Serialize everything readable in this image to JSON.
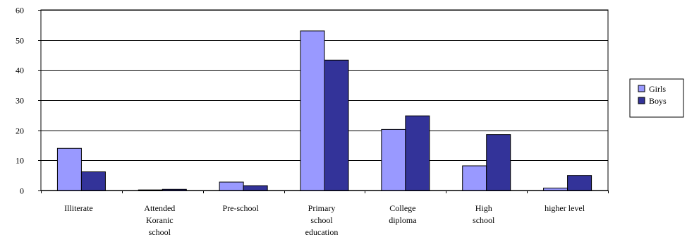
{
  "chart_data": {
    "type": "bar",
    "title": "",
    "xlabel": "",
    "ylabel": "",
    "ylim": [
      0,
      60
    ],
    "yticks": [
      0,
      10,
      20,
      30,
      40,
      50,
      60
    ],
    "grid": true,
    "legend_position": "right",
    "categories": [
      [
        "Illiterate"
      ],
      [
        "Attended",
        "Koranic",
        "school"
      ],
      [
        "Pre-school"
      ],
      [
        "Primary",
        "school",
        "education"
      ],
      [
        "College",
        "diploma"
      ],
      [
        "High",
        "school"
      ],
      [
        "higher level"
      ]
    ],
    "series": [
      {
        "name": "Girls",
        "color": "#9999ff",
        "values": [
          14,
          0.2,
          2.8,
          53,
          20.3,
          8.2,
          0.8
        ]
      },
      {
        "name": "Boys",
        "color": "#333399",
        "values": [
          6.2,
          0.4,
          1.6,
          43.3,
          24.8,
          18.6,
          5
        ]
      }
    ]
  }
}
